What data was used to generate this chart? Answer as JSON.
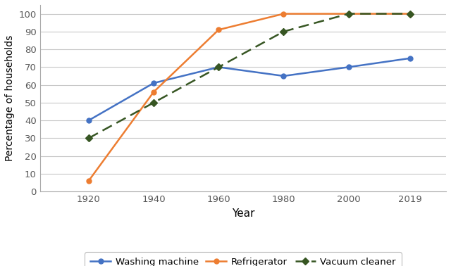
{
  "years": [
    1920,
    1940,
    1960,
    1980,
    2000,
    2019
  ],
  "washing_machine": [
    40,
    61,
    70,
    65,
    70,
    75
  ],
  "refrigerator": [
    6,
    56,
    91,
    100,
    100,
    100
  ],
  "vacuum_cleaner": [
    30,
    50,
    70,
    90,
    100,
    100
  ],
  "washing_machine_color": "#4472C4",
  "refrigerator_color": "#ED7D31",
  "vacuum_cleaner_color": "#375623",
  "xlabel": "Year",
  "ylabel": "Percentage of households",
  "ylim": [
    0,
    105
  ],
  "yticks": [
    0,
    10,
    20,
    30,
    40,
    50,
    60,
    70,
    80,
    90,
    100
  ],
  "xticks": [
    1920,
    1940,
    1960,
    1980,
    2000,
    2019
  ],
  "xlim": [
    1905,
    2030
  ],
  "legend_labels": [
    "Washing machine",
    "Refrigerator",
    "Vacuum cleaner"
  ],
  "background_color": "#ffffff",
  "grid_color": "#c8c8c8"
}
